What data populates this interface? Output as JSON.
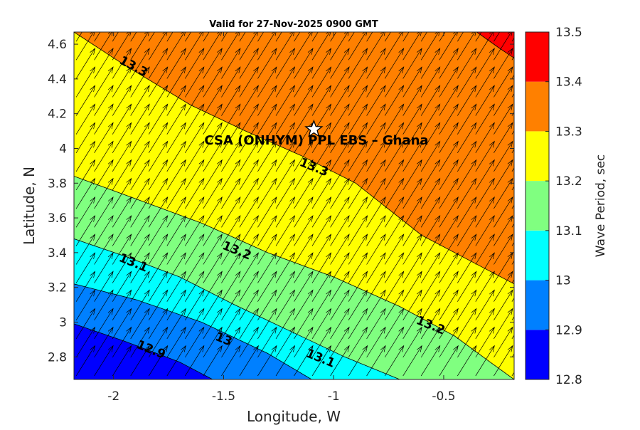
{
  "chart_data": {
    "type": "filled-contour",
    "title": "Valid for 27-Nov-2025 0900 GMT",
    "xlabel": "Longitude, W",
    "ylabel": "Latitude, N",
    "xlim": [
      -2.18,
      -0.18
    ],
    "ylim": [
      2.67,
      4.67
    ],
    "x_ticks": [
      -2,
      -1.5,
      -1,
      -0.5
    ],
    "x_tick_labels": [
      "-2",
      "-1.5",
      "-1",
      "-0.5"
    ],
    "y_ticks": [
      2.8,
      3.0,
      3.2,
      3.4,
      3.6,
      3.8,
      4.0,
      4.2,
      4.4,
      4.6
    ],
    "y_tick_labels": [
      "2.8",
      "3",
      "3.2",
      "3.4",
      "3.6",
      "3.8",
      "4",
      "4.2",
      "4.4",
      "4.6"
    ],
    "colorbar": {
      "label": "Wave Period, sec",
      "range": [
        12.8,
        13.5
      ],
      "tick_labels": [
        "12.8",
        "12.9",
        "13",
        "13.1",
        "13.2",
        "13.3",
        "13.4",
        "13.5"
      ],
      "bands": [
        {
          "min": 12.8,
          "max": 12.9,
          "color": "#0000ff"
        },
        {
          "min": 12.9,
          "max": 13.0,
          "color": "#0080ff"
        },
        {
          "min": 13.0,
          "max": 13.1,
          "color": "#00ffff"
        },
        {
          "min": 13.1,
          "max": 13.2,
          "color": "#80ff80"
        },
        {
          "min": 13.2,
          "max": 13.3,
          "color": "#ffff00"
        },
        {
          "min": 13.3,
          "max": 13.4,
          "color": "#ff8000"
        },
        {
          "min": 13.4,
          "max": 13.5,
          "color": "#ff0000"
        }
      ]
    },
    "contour_lines": [
      {
        "level": 12.9,
        "points": [
          [
            -2.18,
            2.99
          ],
          [
            -1.95,
            2.89
          ],
          [
            -1.7,
            2.77
          ],
          [
            -1.55,
            2.67
          ]
        ]
      },
      {
        "level": 13.0,
        "points": [
          [
            -2.18,
            3.22
          ],
          [
            -1.9,
            3.13
          ],
          [
            -1.6,
            3.0
          ],
          [
            -1.3,
            2.82
          ],
          [
            -1.1,
            2.67
          ]
        ]
      },
      {
        "level": 13.1,
        "points": [
          [
            -2.18,
            3.48
          ],
          [
            -1.95,
            3.38
          ],
          [
            -1.7,
            3.26
          ],
          [
            -1.45,
            3.1
          ],
          [
            -1.2,
            2.95
          ],
          [
            -0.95,
            2.8
          ],
          [
            -0.7,
            2.67
          ]
        ]
      },
      {
        "level": 13.2,
        "points": [
          [
            -2.18,
            3.84
          ],
          [
            -1.9,
            3.71
          ],
          [
            -1.6,
            3.57
          ],
          [
            -1.3,
            3.4
          ],
          [
            -1.0,
            3.26
          ],
          [
            -0.7,
            3.09
          ],
          [
            -0.45,
            2.92
          ],
          [
            -0.3,
            2.78
          ],
          [
            -0.18,
            2.67
          ]
        ]
      },
      {
        "level": 13.3,
        "points": [
          [
            -2.18,
            4.67
          ],
          [
            -1.95,
            4.48
          ],
          [
            -1.65,
            4.25
          ],
          [
            -1.4,
            4.1
          ],
          [
            -1.15,
            3.96
          ],
          [
            -0.9,
            3.8
          ],
          [
            -0.6,
            3.5
          ],
          [
            -0.3,
            3.3
          ],
          [
            -0.18,
            3.22
          ]
        ]
      },
      {
        "level": 13.4,
        "points": [
          [
            -0.35,
            4.67
          ],
          [
            -0.25,
            4.58
          ],
          [
            -0.18,
            4.52
          ]
        ]
      }
    ],
    "contour_labels": [
      {
        "text": "13.3",
        "lon": -1.91,
        "lat": 4.47,
        "angle": 28
      },
      {
        "text": "13.3",
        "lon": -1.09,
        "lat": 3.89,
        "angle": 22
      },
      {
        "text": "13.2",
        "lon": -1.44,
        "lat": 3.41,
        "angle": 22
      },
      {
        "text": "13.2",
        "lon": -0.56,
        "lat": 2.98,
        "angle": 22
      },
      {
        "text": "13.1",
        "lon": -1.91,
        "lat": 3.34,
        "angle": 22
      },
      {
        "text": "13.1",
        "lon": -1.06,
        "lat": 2.79,
        "angle": 22
      },
      {
        "text": "13",
        "lon": -1.5,
        "lat": 2.9,
        "angle": 22
      },
      {
        "text": "12.9",
        "lon": -1.83,
        "lat": 2.84,
        "angle": 22
      }
    ],
    "vector_field": {
      "description": "uniform wave direction arrows",
      "direction_deg_from_east": 58,
      "lon_start": -2.17,
      "lon_step": 0.0825,
      "lat_start": 2.69,
      "lat_step": 0.107,
      "n_lon": 25,
      "n_lat": 19
    },
    "marker": {
      "type": "star",
      "lon": -1.09,
      "lat": 4.11
    },
    "annotation": {
      "text": "CSA (ONHYM) PPL EBS  – Ghana",
      "lon": -1.08,
      "lat": 4.05
    }
  }
}
